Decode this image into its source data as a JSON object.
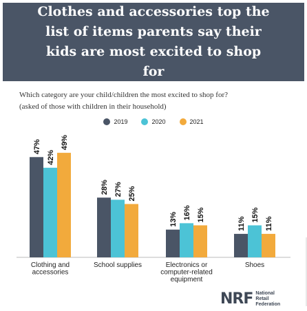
{
  "header": {
    "title": "Clothes and accessories top the list of items parents say their kids are most excited to shop for"
  },
  "question": {
    "line1": "Which category are your child/children the most excited to shop for?",
    "line2": "(asked of those with children in their household)"
  },
  "logo": {
    "mark": "NRF",
    "line1": "National",
    "line2": "Retail",
    "line3": "Federation"
  },
  "colors": {
    "2019": "#4a5566",
    "2020": "#4cc3d6",
    "2021": "#f2aa3c"
  },
  "chart_data": {
    "type": "bar",
    "categories": [
      [
        "Clothing and",
        "accessories"
      ],
      [
        "School supplies"
      ],
      [
        "Electronics or",
        "computer-related",
        "equipment"
      ],
      [
        "Shoes"
      ]
    ],
    "series": [
      {
        "name": "2019",
        "values": [
          47,
          28,
          13,
          11
        ]
      },
      {
        "name": "2020",
        "values": [
          42,
          27,
          16,
          15
        ]
      },
      {
        "name": "2021",
        "values": [
          49,
          25,
          15,
          11
        ]
      }
    ],
    "unit": "%",
    "ylim": [
      0,
      50
    ],
    "grid": false,
    "legend": "top-center"
  }
}
